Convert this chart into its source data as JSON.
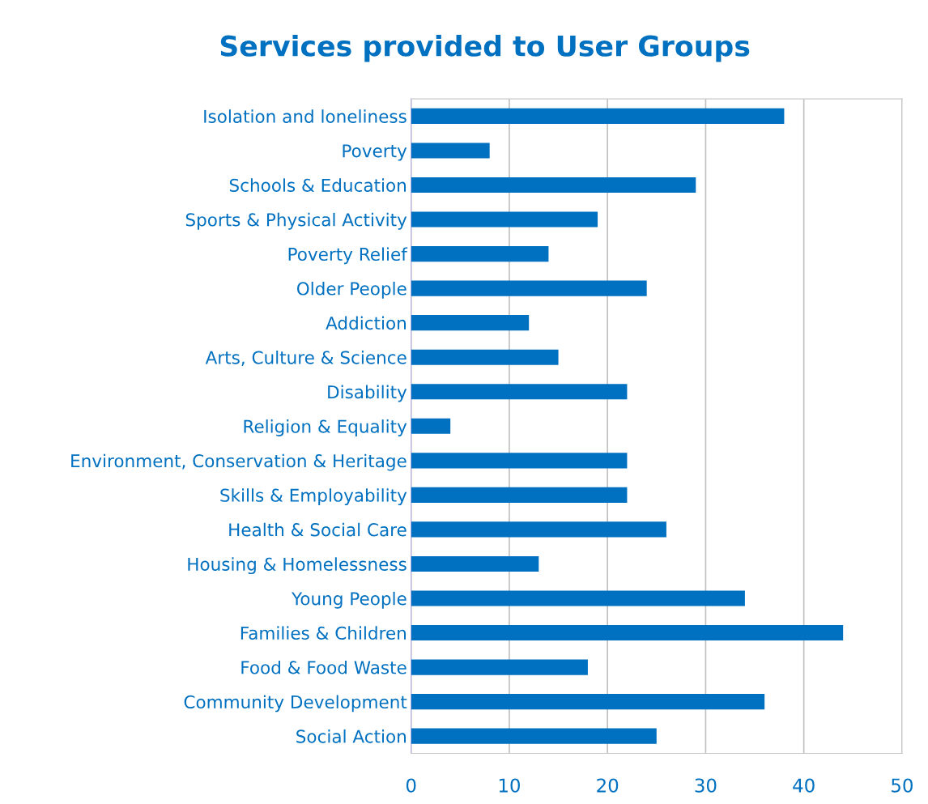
{
  "chart_data": {
    "type": "bar",
    "orientation": "horizontal",
    "title": "Services provided to User Groups",
    "categories": [
      "Isolation and loneliness",
      "Poverty",
      "Schools & Education",
      "Sports & Physical Activity",
      "Poverty Relief",
      "Older People",
      "Addiction",
      "Arts, Culture & Science",
      "Disability",
      "Religion & Equality",
      "Environment, Conservation & Heritage",
      "Skills & Employability",
      "Health & Social Care",
      "Housing & Homelessness",
      "Young People",
      "Families & Children",
      "Food & Food Waste",
      "Community Development",
      "Social Action"
    ],
    "values": [
      38,
      8,
      29,
      19,
      14,
      24,
      12,
      15,
      22,
      4,
      22,
      22,
      26,
      13,
      34,
      44,
      18,
      36,
      25
    ],
    "color": "#0070c0",
    "xlim": [
      0,
      50
    ],
    "xticks": [
      0,
      10,
      20,
      30,
      40,
      50
    ],
    "grid": "x",
    "legend": false
  }
}
